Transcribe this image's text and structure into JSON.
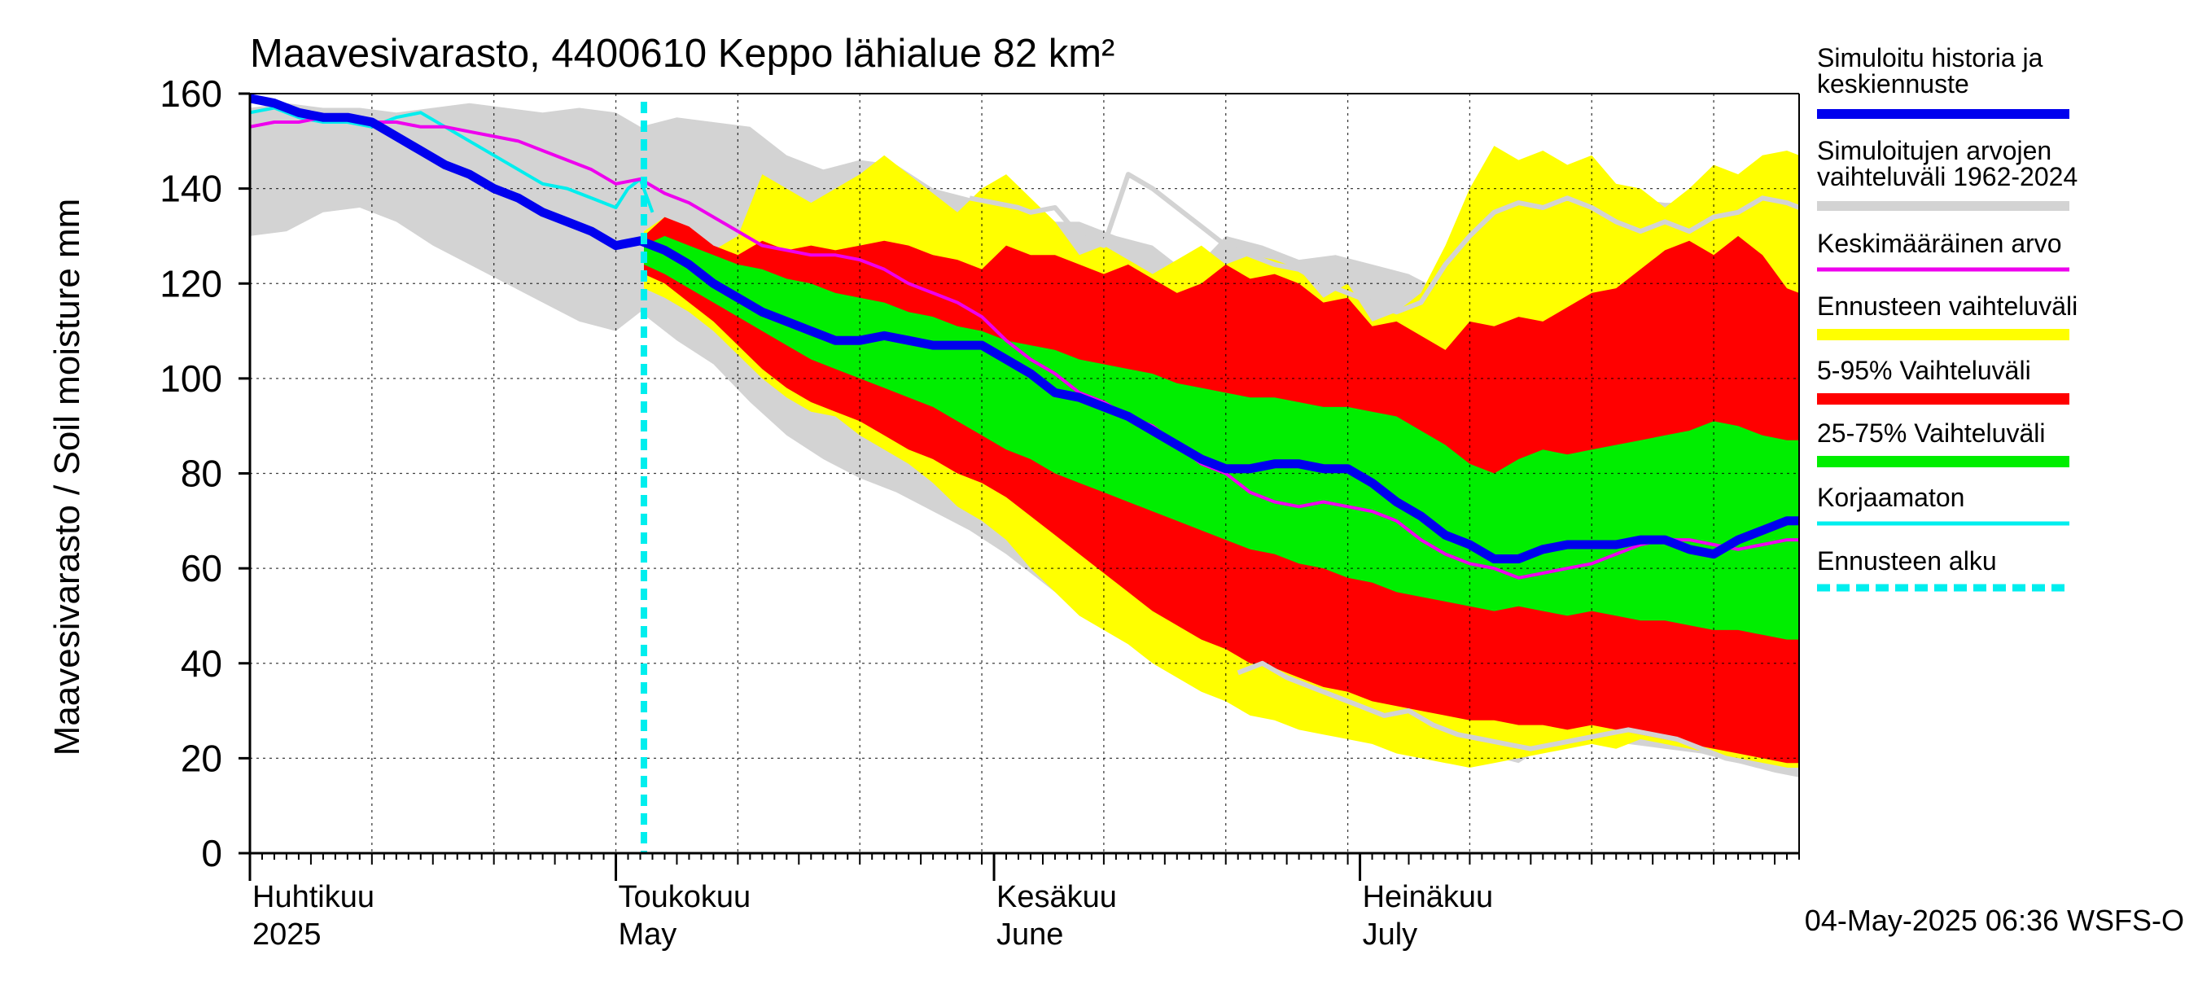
{
  "chart_data": {
    "type": "area",
    "title": "Maavesivarasto, 4400610 Keppo lähialue 82 km²",
    "ylabel": "Maavesivarasto / Soil moisture   mm",
    "ylim": [
      0,
      160
    ],
    "yticks": [
      0,
      20,
      40,
      60,
      80,
      100,
      120,
      140,
      160
    ],
    "xlim_day": [
      0,
      127
    ],
    "x_unit": "days since 1 April 2025",
    "month_labels": [
      {
        "day": 0,
        "fi": "Huhtikuu",
        "en": "2025"
      },
      {
        "day": 30,
        "fi": "Toukokuu",
        "en": "May"
      },
      {
        "day": 61,
        "fi": "Kesäkuu",
        "en": "June"
      },
      {
        "day": 91,
        "fi": "Heinäkuu",
        "en": "July"
      }
    ],
    "forecast_start_day": 32.3,
    "footer": "04-May-2025 06:36 WSFS-O",
    "colors": {
      "hist_range": "#d3d3d3",
      "forecast_range": "#ffff00",
      "p5_95": "#ff0000",
      "p25_75": "#00ee00",
      "median": "#0000ee",
      "mean": "#ee00ee",
      "uncorrected": "#00eeee",
      "forecast_start": "#00eeee",
      "hist_line": "#d3d3d3"
    },
    "series": {
      "hist_range": {
        "name": "Simuloitujen arvojen vaihteluväli 1962-2024",
        "x": [
          0,
          3,
          6,
          9,
          12,
          15,
          18,
          21,
          24,
          27,
          30,
          32,
          35,
          38,
          41,
          44,
          47,
          50,
          53,
          56,
          59,
          62,
          65,
          68,
          71,
          74,
          77,
          80,
          83,
          86,
          89,
          92,
          95,
          98,
          101,
          104,
          107,
          110,
          113,
          116,
          119,
          122,
          125,
          127
        ],
        "upper": [
          157,
          158,
          157,
          157,
          156,
          157,
          158,
          157,
          156,
          157,
          156,
          153,
          155,
          154,
          153,
          147,
          144,
          146,
          145,
          140,
          138,
          136,
          133,
          133,
          130,
          128,
          122,
          130,
          128,
          125,
          126,
          124,
          122,
          118,
          116,
          116,
          128,
          135,
          138,
          137,
          137,
          139,
          140,
          140
        ],
        "lower": [
          130,
          131,
          135,
          136,
          133,
          128,
          124,
          120,
          116,
          112,
          110,
          114,
          108,
          103,
          95,
          88,
          83,
          79,
          76,
          72,
          68,
          63,
          57,
          51,
          47,
          43,
          38,
          36,
          38,
          34,
          32,
          30,
          28,
          24,
          21,
          19,
          24,
          25,
          23,
          22,
          21,
          19,
          17,
          16
        ]
      },
      "forecast_range": {
        "name": "Ennusteen vaihteluväli",
        "x": [
          32.3,
          34,
          36,
          38,
          40,
          42,
          44,
          46,
          48,
          50,
          52,
          54,
          56,
          58,
          60,
          62,
          64,
          66,
          68,
          70,
          72,
          74,
          76,
          78,
          80,
          82,
          84,
          86,
          88,
          90,
          92,
          94,
          96,
          98,
          100,
          102,
          104,
          106,
          108,
          110,
          112,
          114,
          116,
          118,
          120,
          122,
          124,
          126,
          127
        ],
        "upper": [
          131,
          134,
          130,
          127,
          130,
          143,
          140,
          137,
          140,
          143,
          147,
          143,
          139,
          135,
          140,
          143,
          138,
          133,
          126,
          128,
          125,
          122,
          125,
          128,
          124,
          126,
          125,
          123,
          117,
          120,
          112,
          114,
          118,
          128,
          140,
          149,
          146,
          148,
          145,
          147,
          141,
          140,
          136,
          140,
          145,
          143,
          147,
          148,
          147
        ],
        "lower": [
          119,
          117,
          114,
          110,
          105,
          100,
          96,
          93,
          92,
          88,
          85,
          82,
          78,
          73,
          70,
          66,
          60,
          55,
          50,
          47,
          44,
          40,
          37,
          34,
          32,
          29,
          28,
          26,
          25,
          24,
          23,
          21,
          20,
          19,
          18,
          19,
          20,
          21,
          22,
          23,
          22,
          24,
          23,
          22,
          21,
          20,
          19,
          18,
          18
        ]
      },
      "p5_95": {
        "name": "5-95% Vaihteluväli",
        "x": [
          32.3,
          34,
          36,
          38,
          40,
          42,
          44,
          46,
          48,
          50,
          52,
          54,
          56,
          58,
          60,
          62,
          64,
          66,
          68,
          70,
          72,
          74,
          76,
          78,
          80,
          82,
          84,
          86,
          88,
          90,
          92,
          94,
          96,
          98,
          100,
          102,
          104,
          106,
          108,
          110,
          112,
          114,
          116,
          118,
          120,
          122,
          124,
          126,
          127
        ],
        "upper": [
          130,
          134,
          132,
          128,
          126,
          129,
          127,
          128,
          127,
          128,
          129,
          128,
          126,
          125,
          123,
          128,
          126,
          126,
          124,
          122,
          124,
          121,
          118,
          120,
          124,
          121,
          122,
          120,
          116,
          117,
          111,
          112,
          109,
          106,
          112,
          111,
          113,
          112,
          115,
          118,
          119,
          123,
          127,
          129,
          126,
          130,
          126,
          119,
          118
        ],
        "lower": [
          122,
          120,
          116,
          112,
          107,
          102,
          98,
          95,
          93,
          91,
          88,
          85,
          83,
          80,
          78,
          75,
          71,
          67,
          63,
          59,
          55,
          51,
          48,
          45,
          43,
          40,
          39,
          37,
          35,
          34,
          32,
          31,
          30,
          29,
          28,
          28,
          27,
          27,
          26,
          27,
          26,
          25,
          24,
          23,
          22,
          21,
          20,
          19,
          19
        ]
      },
      "p25_75": {
        "name": "25-75% Vaihteluväli",
        "x": [
          32.3,
          34,
          36,
          38,
          40,
          42,
          44,
          46,
          48,
          50,
          52,
          54,
          56,
          58,
          60,
          62,
          64,
          66,
          68,
          70,
          72,
          74,
          76,
          78,
          80,
          82,
          84,
          86,
          88,
          90,
          92,
          94,
          96,
          98,
          100,
          102,
          104,
          106,
          108,
          110,
          112,
          114,
          116,
          118,
          120,
          122,
          124,
          126,
          127
        ],
        "upper": [
          128,
          130,
          128,
          126,
          124,
          123,
          121,
          120,
          118,
          117,
          116,
          114,
          113,
          111,
          110,
          108,
          107,
          106,
          104,
          103,
          102,
          101,
          99,
          98,
          97,
          96,
          96,
          95,
          94,
          94,
          93,
          92,
          89,
          86,
          82,
          80,
          83,
          85,
          84,
          85,
          86,
          87,
          88,
          89,
          91,
          90,
          88,
          87,
          87
        ],
        "lower": [
          124,
          122,
          119,
          116,
          113,
          110,
          107,
          104,
          102,
          100,
          98,
          96,
          94,
          91,
          88,
          85,
          83,
          80,
          78,
          76,
          74,
          72,
          70,
          68,
          66,
          64,
          63,
          61,
          60,
          58,
          57,
          55,
          54,
          53,
          52,
          51,
          52,
          51,
          50,
          51,
          50,
          49,
          49,
          48,
          47,
          47,
          46,
          45,
          45
        ]
      },
      "median": {
        "name": "Simuloitu historia ja keskiennuste",
        "x": [
          0,
          2,
          4,
          6,
          8,
          10,
          12,
          14,
          16,
          18,
          20,
          22,
          24,
          26,
          28,
          30,
          32,
          34,
          36,
          38,
          40,
          42,
          44,
          46,
          48,
          50,
          52,
          54,
          56,
          58,
          60,
          62,
          64,
          66,
          68,
          70,
          72,
          74,
          76,
          78,
          80,
          82,
          84,
          86,
          88,
          90,
          92,
          94,
          96,
          98,
          100,
          102,
          104,
          106,
          108,
          110,
          112,
          114,
          116,
          118,
          120,
          122,
          124,
          126,
          127
        ],
        "y": [
          159,
          158,
          156,
          155,
          155,
          154,
          151,
          148,
          145,
          143,
          140,
          138,
          135,
          133,
          131,
          128,
          129,
          127,
          124,
          120,
          117,
          114,
          112,
          110,
          108,
          108,
          109,
          108,
          107,
          107,
          107,
          104,
          101,
          97,
          96,
          94,
          92,
          89,
          86,
          83,
          81,
          81,
          82,
          82,
          81,
          81,
          78,
          74,
          71,
          67,
          65,
          62,
          62,
          64,
          65,
          65,
          65,
          66,
          66,
          64,
          63,
          66,
          68,
          70,
          70
        ]
      },
      "mean": {
        "name": "Keskimääräinen arvo",
        "x": [
          0,
          2,
          4,
          6,
          8,
          10,
          12,
          14,
          16,
          18,
          20,
          22,
          24,
          26,
          28,
          30,
          32,
          34,
          36,
          38,
          40,
          42,
          44,
          46,
          48,
          50,
          52,
          54,
          56,
          58,
          60,
          62,
          64,
          66,
          68,
          70,
          72,
          74,
          76,
          78,
          80,
          82,
          84,
          86,
          88,
          90,
          92,
          94,
          96,
          98,
          100,
          102,
          104,
          106,
          108,
          110,
          112,
          114,
          116,
          118,
          120,
          122,
          124,
          126,
          127
        ],
        "y": [
          153,
          154,
          154,
          155,
          155,
          154,
          154,
          153,
          153,
          152,
          151,
          150,
          148,
          146,
          144,
          141,
          142,
          139,
          137,
          134,
          131,
          128,
          127,
          126,
          126,
          125,
          123,
          120,
          118,
          116,
          113,
          108,
          104,
          101,
          97,
          95,
          92,
          90,
          86,
          82,
          80,
          76,
          74,
          73,
          74,
          73,
          72,
          70,
          66,
          63,
          61,
          60,
          58,
          59,
          60,
          61,
          63,
          65,
          66,
          66,
          65,
          64,
          65,
          66,
          66
        ]
      },
      "uncorrected": {
        "name": "Korjaamaton",
        "x": [
          0,
          2,
          4,
          6,
          8,
          10,
          12,
          14,
          16,
          18,
          20,
          22,
          24,
          26,
          28,
          29,
          30,
          31,
          32,
          33
        ],
        "y": [
          156,
          157,
          155,
          154,
          154,
          153,
          155,
          156,
          153,
          150,
          147,
          144,
          141,
          140,
          138,
          137,
          136,
          140,
          142,
          135
        ]
      },
      "hist_line": {
        "name": "Simuloitujen arvojen vaihteluväli 1962-2024",
        "x": [
          81,
          83,
          85,
          87,
          89,
          91,
          93,
          95,
          97,
          99,
          101,
          103,
          105,
          107,
          109,
          111,
          113,
          115,
          117,
          119,
          121,
          123,
          125,
          127
        ],
        "y": [
          38,
          40,
          37,
          35,
          33,
          31,
          29,
          30,
          27,
          25,
          24,
          23,
          22,
          23,
          24,
          25,
          26,
          25,
          24,
          22,
          20,
          19,
          18,
          17
        ]
      },
      "hist_line_upper": {
        "name": "Simuloitujen arvojen vaihteluväli 1962-2024",
        "x": [
          59,
          61,
          63,
          64,
          66,
          68,
          70,
          72,
          74,
          76,
          78,
          80,
          82,
          84,
          86,
          88,
          90,
          92,
          94,
          96,
          98,
          100,
          102,
          104,
          106,
          108,
          110,
          112,
          114,
          116,
          118,
          120,
          122,
          124,
          126,
          127
        ],
        "y": [
          138,
          137,
          136,
          135,
          136,
          130,
          128,
          143,
          140,
          136,
          132,
          128,
          126,
          124,
          123,
          120,
          118,
          116,
          114,
          116,
          124,
          130,
          135,
          137,
          136,
          138,
          136,
          133,
          131,
          133,
          131,
          134,
          135,
          138,
          137,
          136
        ]
      }
    },
    "legend": [
      {
        "label": "Simuloitu historia ja keskiennuste",
        "color": "#0000ee",
        "style": "solid"
      },
      {
        "label": "Simuloitujen arvojen vaihteluväli 1962-2024",
        "color": "#d3d3d3",
        "style": "solid"
      },
      {
        "label": "Keskimääräinen arvo",
        "color": "#ee00ee",
        "style": "solid"
      },
      {
        "label": "Ennusteen vaihteluväli",
        "color": "#ffff00",
        "style": "solid"
      },
      {
        "label": "5-95% Vaihteluväli",
        "color": "#ff0000",
        "style": "solid"
      },
      {
        "label": "25-75% Vaihteluväli",
        "color": "#00ee00",
        "style": "solid"
      },
      {
        "label": "Korjaamaton",
        "color": "#00eeee",
        "style": "solid"
      },
      {
        "label": "Ennusteen alku",
        "color": "#00eeee",
        "style": "dashed"
      }
    ]
  }
}
